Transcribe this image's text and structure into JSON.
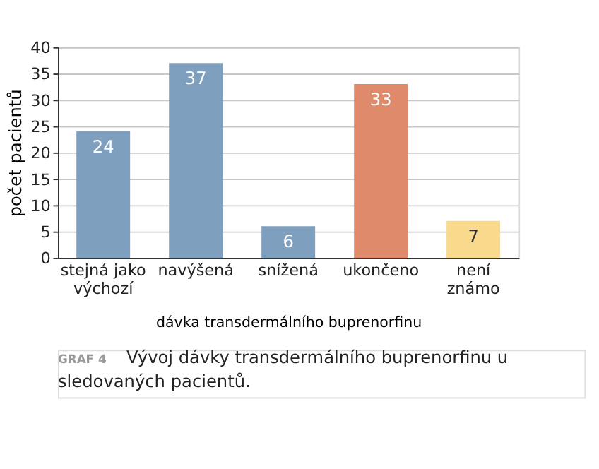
{
  "chart_data": {
    "type": "bar",
    "title": "Vývoj dávky transdermálního buprenorfinu u sledovaných pacientů.",
    "annotations": [
      "GRAF 4"
    ],
    "xlabel": "dávka transdermálního buprenorfinu",
    "ylabel": "počet pacientů",
    "categories": [
      "stejná jako výchozí",
      "navýšená",
      "snížená",
      "ukončeno",
      "není známo"
    ],
    "values": [
      24,
      37,
      6,
      33,
      7
    ],
    "colors": [
      "#7f9fbf",
      "#7f9fbf",
      "#7f9fbf",
      "#e08a6c",
      "#f9d98c"
    ],
    "ylim": [
      0,
      40
    ],
    "yticks": [
      0,
      5,
      10,
      15,
      20,
      25,
      30,
      35,
      40
    ],
    "grid": "y",
    "data_labels": true
  }
}
